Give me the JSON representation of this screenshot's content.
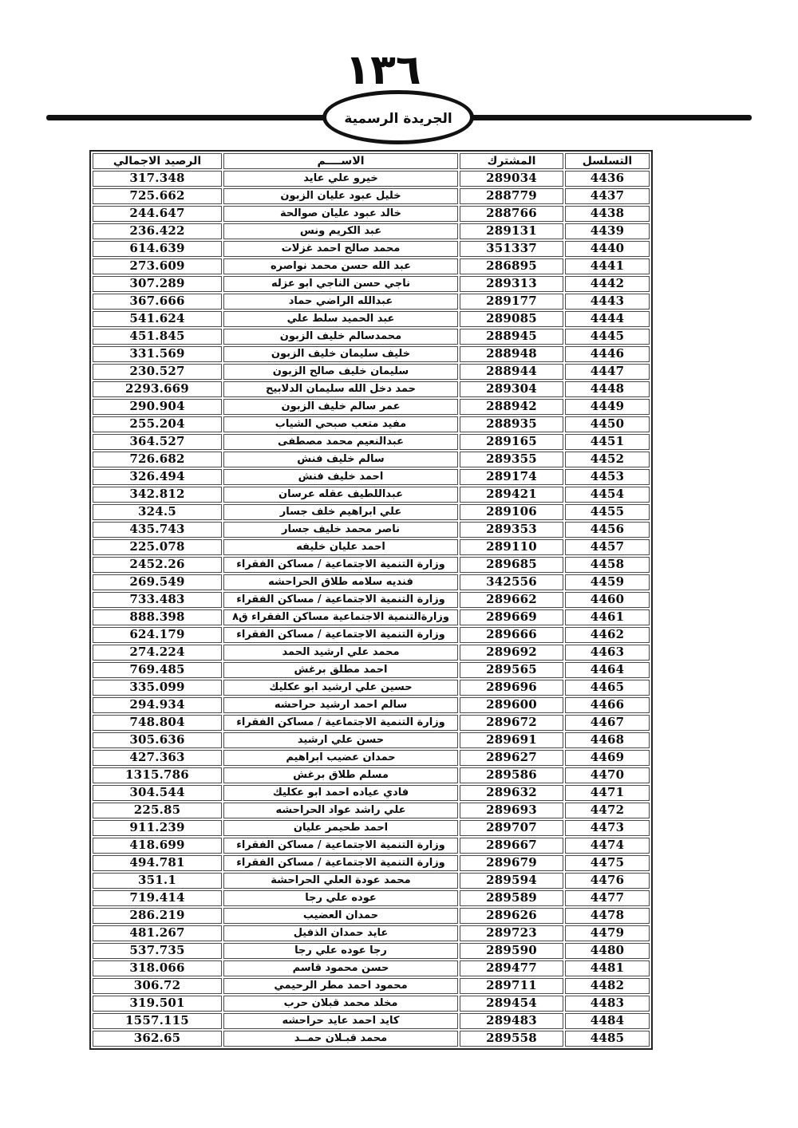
{
  "page": {
    "number": "١٣٦",
    "banner_title": "الجريدة الرسمية"
  },
  "colors": {
    "ink": "#0d0d0d",
    "border": "#4a4a4a"
  },
  "table": {
    "headers": {
      "serial": "التسلسل",
      "subscriber": "المشترك",
      "name": "الاســــم",
      "balance": "الرصيد الاجمالي"
    },
    "rows": [
      {
        "serial": "4436",
        "subscriber": "289034",
        "name": "خيرو علي عايد",
        "balance": "317.348"
      },
      {
        "serial": "4437",
        "subscriber": "288779",
        "name": "خليل عبود عليان الزبون",
        "balance": "725.662"
      },
      {
        "serial": "4438",
        "subscriber": "288766",
        "name": "خالد عبود عليان صوالحة",
        "balance": "244.647"
      },
      {
        "serial": "4439",
        "subscriber": "289131",
        "name": "عبد الكريم ونس",
        "balance": "236.422"
      },
      {
        "serial": "4440",
        "subscriber": "351337",
        "name": "محمد صالح احمد غزلات",
        "balance": "614.639"
      },
      {
        "serial": "4441",
        "subscriber": "286895",
        "name": "عبد الله حسن محمد نواصره",
        "balance": "273.609"
      },
      {
        "serial": "4442",
        "subscriber": "289313",
        "name": "ناجي حسن الناجي ابو عزله",
        "balance": "307.289"
      },
      {
        "serial": "4443",
        "subscriber": "289177",
        "name": "عبدالله الراضي حماد",
        "balance": "367.666"
      },
      {
        "serial": "4444",
        "subscriber": "289085",
        "name": "عبد الحميد سلط علي",
        "balance": "541.624"
      },
      {
        "serial": "4445",
        "subscriber": "288945",
        "name": "محمدسالم خليف الزبون",
        "balance": "451.845"
      },
      {
        "serial": "4446",
        "subscriber": "288948",
        "name": "خليف سليمان خليف الزبون",
        "balance": "331.569"
      },
      {
        "serial": "4447",
        "subscriber": "288944",
        "name": "سليمان خليف صالح الزبون",
        "balance": "230.527"
      },
      {
        "serial": "4448",
        "subscriber": "289304",
        "name": "حمد دخل الله سليمان الدلابيح",
        "balance": "2293.669"
      },
      {
        "serial": "4449",
        "subscriber": "288942",
        "name": "عمر سالم خليف الزبون",
        "balance": "290.904"
      },
      {
        "serial": "4450",
        "subscriber": "288935",
        "name": "مفيد متعب صبحي الشياب",
        "balance": "255.204"
      },
      {
        "serial": "4451",
        "subscriber": "289165",
        "name": "عبدالنعيم محمد مصطفى",
        "balance": "364.527"
      },
      {
        "serial": "4452",
        "subscriber": "289355",
        "name": "سالم خليف فنش",
        "balance": "726.682"
      },
      {
        "serial": "4453",
        "subscriber": "289174",
        "name": "احمد خليف فنش",
        "balance": "326.494"
      },
      {
        "serial": "4454",
        "subscriber": "289421",
        "name": "عبداللطيف عقله عرسان",
        "balance": "342.812"
      },
      {
        "serial": "4455",
        "subscriber": "289106",
        "name": "علي ابراهيم خلف جسار",
        "balance": "324.5"
      },
      {
        "serial": "4456",
        "subscriber": "289353",
        "name": "ناصر محمد خليف جسار",
        "balance": "435.743"
      },
      {
        "serial": "4457",
        "subscriber": "289110",
        "name": "احمد عليان خليفه",
        "balance": "225.078"
      },
      {
        "serial": "4458",
        "subscriber": "289685",
        "name": "وزارة التنمية الاجتماعية / مساكن الفقراء",
        "balance": "2452.26"
      },
      {
        "serial": "4459",
        "subscriber": "342556",
        "name": "فنديه سلامه طلاق الحراحشه",
        "balance": "269.549"
      },
      {
        "serial": "4460",
        "subscriber": "289662",
        "name": "وزارة التنمية الاجتماعية / مساكن الفقراء",
        "balance": "733.483"
      },
      {
        "serial": "4461",
        "subscriber": "289669",
        "name": "وزارةالتنمية الاجتماعية مساكن الفقراء ق٨",
        "balance": "888.398"
      },
      {
        "serial": "4462",
        "subscriber": "289666",
        "name": "وزارة التنمية الاجتماعية / مساكن الفقراء",
        "balance": "624.179"
      },
      {
        "serial": "4463",
        "subscriber": "289692",
        "name": "محمد علي ارشيد الحمد",
        "balance": "274.224"
      },
      {
        "serial": "4464",
        "subscriber": "289565",
        "name": "احمد مطلق برغش",
        "balance": "769.485"
      },
      {
        "serial": "4465",
        "subscriber": "289696",
        "name": "حسين علي ارشيد ابو عكليك",
        "balance": "335.099"
      },
      {
        "serial": "4466",
        "subscriber": "289600",
        "name": "سالم احمد ارشيد حراحشه",
        "balance": "294.934"
      },
      {
        "serial": "4467",
        "subscriber": "289672",
        "name": "وزارة التنمية الاجتماعية / مساكن الفقراء",
        "balance": "748.804"
      },
      {
        "serial": "4468",
        "subscriber": "289691",
        "name": "حسن علي ارشيد",
        "balance": "305.636"
      },
      {
        "serial": "4469",
        "subscriber": "289627",
        "name": "حمدان عضيب ابراهيم",
        "balance": "427.363"
      },
      {
        "serial": "4470",
        "subscriber": "289586",
        "name": "مسلم طلاق برغش",
        "balance": "1315.786"
      },
      {
        "serial": "4471",
        "subscriber": "289632",
        "name": "فادي عياده احمد ابو عكليك",
        "balance": "304.544"
      },
      {
        "serial": "4472",
        "subscriber": "289693",
        "name": "علي راشد عواد الحراحشه",
        "balance": "225.85"
      },
      {
        "serial": "4473",
        "subscriber": "289707",
        "name": "احمد طحيمر عليان",
        "balance": "911.239"
      },
      {
        "serial": "4474",
        "subscriber": "289667",
        "name": "وزارة التنمية الاجتماعية / مساكن الفقراء",
        "balance": "418.699"
      },
      {
        "serial": "4475",
        "subscriber": "289679",
        "name": "وزارة التنمية الاجتماعية / مساكن الفقراء",
        "balance": "494.781"
      },
      {
        "serial": "4476",
        "subscriber": "289594",
        "name": "محمد عودة العلي الحراحشة",
        "balance": "351.1"
      },
      {
        "serial": "4477",
        "subscriber": "289589",
        "name": "عوده علي رجا",
        "balance": "719.414"
      },
      {
        "serial": "4478",
        "subscriber": "289626",
        "name": "حمدان العضيب",
        "balance": "286.219"
      },
      {
        "serial": "4479",
        "subscriber": "289723",
        "name": "عايد حمدان الذفيل",
        "balance": "481.267"
      },
      {
        "serial": "4480",
        "subscriber": "289590",
        "name": "رجا عوده علي رجا",
        "balance": "537.735"
      },
      {
        "serial": "4481",
        "subscriber": "289477",
        "name": "حسن محمود قاسم",
        "balance": "318.066"
      },
      {
        "serial": "4482",
        "subscriber": "289711",
        "name": "محمود احمد مطر الرحيمي",
        "balance": "306.72"
      },
      {
        "serial": "4483",
        "subscriber": "289454",
        "name": "مخلد محمد قبلان حرب",
        "balance": "319.501"
      },
      {
        "serial": "4484",
        "subscriber": "289483",
        "name": "كايد احمد عايد حراحشه",
        "balance": "1557.115"
      },
      {
        "serial": "4485",
        "subscriber": "289558",
        "name": "محمد قبـلان حمــد",
        "balance": "362.65"
      }
    ]
  }
}
